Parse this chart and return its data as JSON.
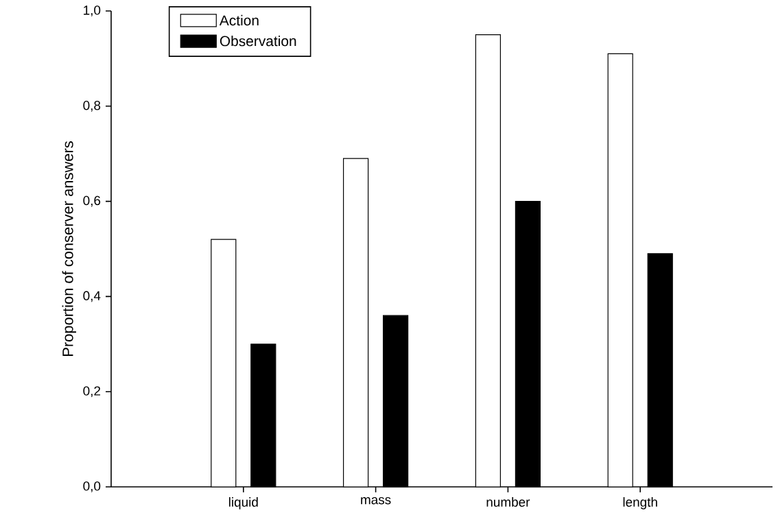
{
  "chart_data": {
    "type": "bar",
    "ylabel": "Proportion of conserver answers",
    "categories": [
      "liquid",
      "mass",
      "number",
      "length"
    ],
    "series": [
      {
        "name": "Action",
        "color": "#ffffff",
        "values": [
          0.52,
          0.69,
          0.95,
          0.91
        ]
      },
      {
        "name": "Observation",
        "color": "#000000",
        "values": [
          0.3,
          0.36,
          0.6,
          0.49
        ]
      }
    ],
    "ylim": [
      0,
      1
    ],
    "yticks": [
      {
        "value": 0,
        "label": "0,0"
      },
      {
        "value": 0.2,
        "label": "0,2"
      },
      {
        "value": 0.4,
        "label": "0,4"
      },
      {
        "value": 0.6,
        "label": "0,6"
      },
      {
        "value": 0.8,
        "label": "0,8"
      },
      {
        "value": 1,
        "label": "1,0"
      }
    ],
    "grid": false,
    "legend": "top left"
  }
}
